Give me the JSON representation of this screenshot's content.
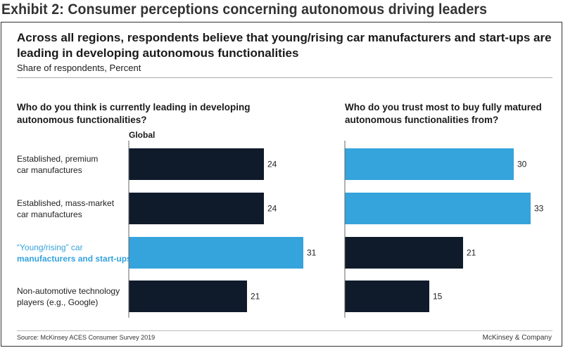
{
  "exhibit_title": "Exhibit 2: Consumer perceptions concerning autonomous driving leaders",
  "headline": "Across all regions, respondents believe that young/rising car manufacturers and start-ups are leading in developing autonomous functionalities",
  "subtitle": "Share of respondents, Percent",
  "footer": {
    "source": "Source: McKinsey ACES Consumer Survey 2019",
    "brand": "McKinsey & Company"
  },
  "colors": {
    "dark": "#0f1b2b",
    "highlight": "#35a3dc"
  },
  "chart_data": [
    {
      "type": "bar",
      "orientation": "horizontal",
      "title": "Who do you think is currently leading in developing autonomous functionalities?",
      "series_label": "Global",
      "categories": [
        "Established, premium car manufactures",
        "Established, mass-market car manufactures",
        "“Young/rising” car manufacturers and start-ups",
        "Non-automotive technology players (e.g., Google)"
      ],
      "category_lines": [
        [
          "Established, premium",
          "car manufactures"
        ],
        [
          "Established, mass-market",
          "car manufactures"
        ],
        [
          "“Young/rising” car",
          "manufacturers and start-ups"
        ],
        [
          "Non-automotive technology",
          "players (e.g., Google)"
        ]
      ],
      "values": [
        24,
        24,
        31,
        21
      ],
      "highlight": [
        false,
        false,
        true,
        false
      ]
    },
    {
      "type": "bar",
      "orientation": "horizontal",
      "title": "Who do you trust most to buy fully matured autonomous functionalities from?",
      "categories": [
        "Established, premium car manufactures",
        "Established, mass-market car manufactures",
        "“Young/rising” car manufacturers and start-ups",
        "Non-automotive technology players (e.g., Google)"
      ],
      "values": [
        30,
        33,
        21,
        15
      ],
      "highlight": [
        true,
        true,
        false,
        false
      ]
    }
  ]
}
